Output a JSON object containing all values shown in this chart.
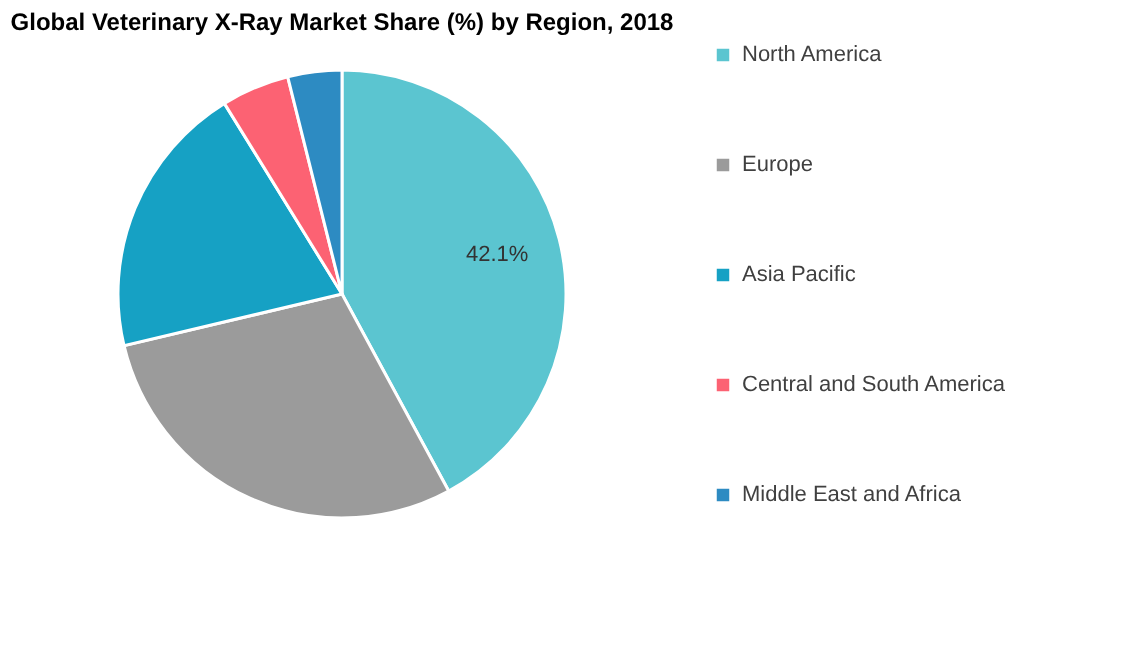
{
  "chart_data": {
    "type": "pie",
    "title": "Global Veterinary X-Ray Market Share (%) by Region, 2018",
    "categories": [
      "North America",
      "Europe",
      "Asia Pacific",
      "Central and South America",
      "Middle East and Africa"
    ],
    "values": [
      42.1,
      29.2,
      19.9,
      4.9,
      3.9
    ],
    "colors": [
      "#5bc5d0",
      "#9b9b9b",
      "#16a1c4",
      "#fc6273",
      "#2d8bc2"
    ],
    "value_labels": [
      "42.1%",
      null,
      null,
      null,
      null
    ],
    "legend": "right"
  }
}
